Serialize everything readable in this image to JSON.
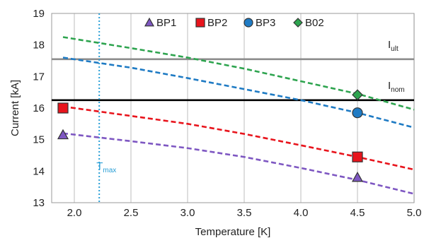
{
  "chart_data": {
    "type": "line",
    "xlabel": "Temperature [K]",
    "ylabel": "Current [kA]",
    "xlim": [
      1.8,
      5.0
    ],
    "ylim": [
      13,
      19
    ],
    "x_ticks": [
      "2.0",
      "2.5",
      "3.0",
      "3.5",
      "4.0",
      "4.5",
      "5.0"
    ],
    "y_ticks": [
      "13",
      "14",
      "15",
      "16",
      "17",
      "18",
      "19"
    ],
    "grid": "vertical",
    "legend_position": "top",
    "series": [
      {
        "name": "BP1",
        "color": "#7e57c2",
        "marker": "triangle",
        "line_style": "dashed",
        "line": {
          "x": [
            1.9,
            2.5,
            3.0,
            3.5,
            4.0,
            4.5,
            5.0
          ],
          "y": [
            15.2,
            14.95,
            14.73,
            14.45,
            14.1,
            13.72,
            13.28
          ]
        },
        "points": {
          "x": [
            1.9,
            4.5
          ],
          "y": [
            15.15,
            13.8
          ]
        }
      },
      {
        "name": "BP2",
        "color": "#e8141c",
        "marker": "square",
        "line_style": "dashed",
        "line": {
          "x": [
            1.9,
            2.5,
            3.0,
            3.5,
            4.0,
            4.5,
            5.0
          ],
          "y": [
            16.05,
            15.75,
            15.5,
            15.18,
            14.82,
            14.45,
            14.05
          ]
        },
        "points": {
          "x": [
            1.9,
            4.5
          ],
          "y": [
            16.0,
            14.45
          ]
        }
      },
      {
        "name": "BP3",
        "color": "#1f7bc4",
        "marker": "circle",
        "line_style": "dashed",
        "line": {
          "x": [
            1.9,
            2.5,
            3.0,
            3.5,
            4.0,
            4.5,
            5.0
          ],
          "y": [
            17.6,
            17.28,
            16.95,
            16.6,
            16.25,
            15.85,
            15.38
          ]
        },
        "points": {
          "x": [
            4.5
          ],
          "y": [
            15.85
          ]
        }
      },
      {
        "name": "B02",
        "color": "#2ea44f",
        "marker": "diamond",
        "line_style": "dashed",
        "line": {
          "x": [
            1.9,
            2.5,
            3.0,
            3.5,
            4.0,
            4.5,
            5.0
          ],
          "y": [
            18.25,
            17.9,
            17.6,
            17.25,
            16.85,
            16.45,
            15.95
          ]
        },
        "points": {
          "x": [
            4.5
          ],
          "y": [
            16.42
          ]
        }
      }
    ],
    "hlines": [
      {
        "y": 17.55,
        "color": "#8c8c8c",
        "label": "I",
        "sub": "ult"
      },
      {
        "y": 16.25,
        "color": "#000000",
        "label": "I",
        "sub": "nom"
      }
    ],
    "vlines": [
      {
        "x": 2.22,
        "color": "#2a9fd6",
        "label": "T",
        "sub": "max"
      }
    ]
  }
}
